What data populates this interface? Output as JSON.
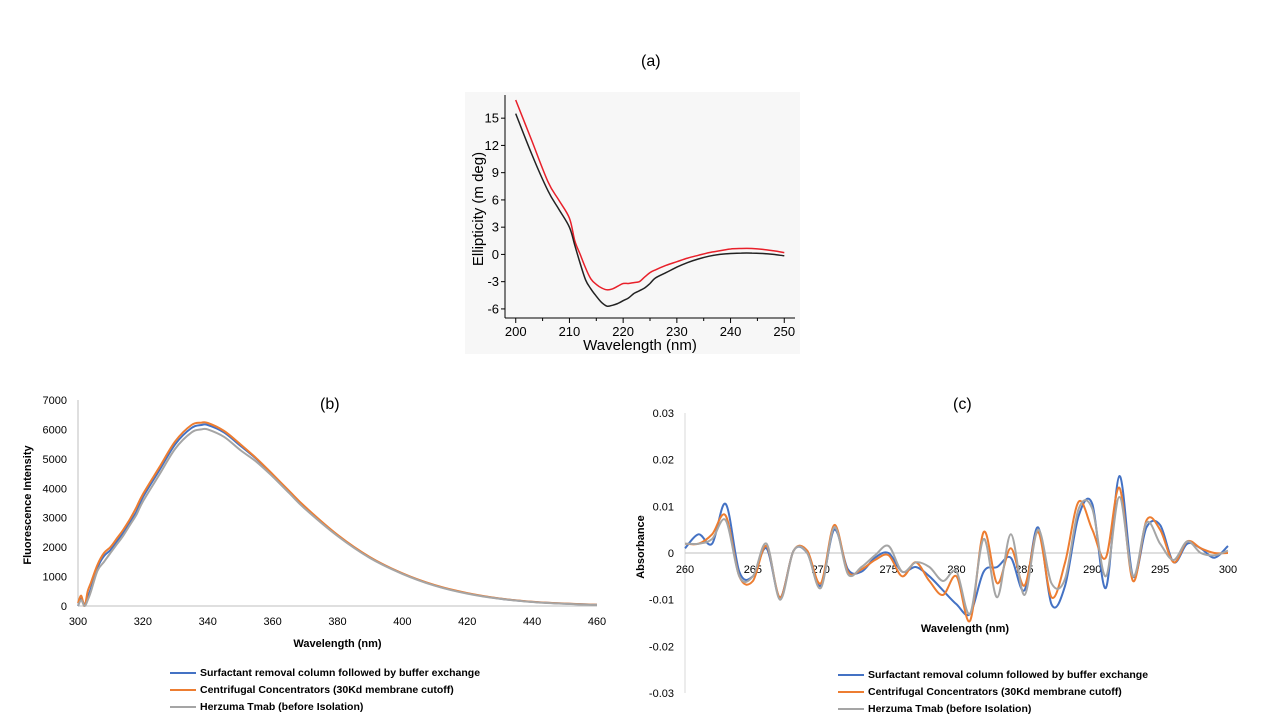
{
  "panels": {
    "a": {
      "label": "(a)"
    },
    "b": {
      "label": "(b)"
    },
    "c": {
      "label": "(c)"
    }
  },
  "colors": {
    "blue": "#4472C4",
    "orange": "#ED7D31",
    "gray": "#A5A5A5",
    "red": "#e8202a",
    "black": "#222222"
  },
  "legend": [
    {
      "name": "Surfactant removal column followed by buffer exchange",
      "color": "#4472C4"
    },
    {
      "name": "Centrifugal Concentrators (30Kd membrane cutoff)",
      "color": "#ED7D31"
    },
    {
      "name": "Herzuma Tmab (before Isolation)",
      "color": "#A5A5A5"
    }
  ],
  "chart_data": [
    {
      "type": "line",
      "title": "",
      "xlabel": "Wavelength (nm)",
      "ylabel": "Ellipticity (m deg)",
      "xlim": [
        198,
        252
      ],
      "ylim": [
        -7,
        17
      ],
      "xticks": [
        200,
        210,
        220,
        230,
        240,
        250
      ],
      "yticks": [
        -6,
        -3,
        0,
        3,
        6,
        9,
        12,
        15
      ],
      "grid": false,
      "series": [
        {
          "color": "#e8202a",
          "x": [
            200,
            203,
            206,
            208,
            210,
            211,
            212,
            213,
            214,
            215,
            216,
            217,
            218,
            219,
            220,
            221,
            222,
            223,
            224,
            225,
            226,
            228,
            230,
            232,
            234,
            236,
            238,
            240,
            242,
            244,
            246,
            248,
            250
          ],
          "y": [
            17,
            12.5,
            8,
            6,
            4,
            1.5,
            0,
            -1.5,
            -2.7,
            -3.3,
            -3.7,
            -3.9,
            -3.8,
            -3.5,
            -3.2,
            -3.2,
            -3.1,
            -3.0,
            -2.5,
            -2.0,
            -1.7,
            -1.2,
            -0.8,
            -0.4,
            -0.1,
            0.2,
            0.4,
            0.6,
            0.65,
            0.65,
            0.55,
            0.4,
            0.2
          ]
        },
        {
          "color": "#222222",
          "x": [
            200,
            203,
            206,
            208,
            210,
            211,
            212,
            213,
            214,
            215,
            216,
            217,
            218,
            219,
            220,
            221,
            222,
            223,
            224,
            225,
            226,
            228,
            230,
            232,
            234,
            236,
            238,
            240,
            242,
            244,
            246,
            248,
            250
          ],
          "y": [
            15.5,
            11,
            7,
            5,
            3,
            1,
            -1,
            -2.8,
            -3.8,
            -4.6,
            -5.3,
            -5.7,
            -5.6,
            -5.4,
            -5.1,
            -4.8,
            -4.3,
            -4.0,
            -3.7,
            -3.2,
            -2.6,
            -2.0,
            -1.4,
            -0.9,
            -0.5,
            -0.2,
            0.0,
            0.1,
            0.15,
            0.15,
            0.1,
            0.0,
            -0.15
          ]
        }
      ]
    },
    {
      "type": "line",
      "title": "",
      "xlabel": "Wavelength (nm)",
      "ylabel": "Fluorescence Intensity",
      "xlim": [
        300,
        460
      ],
      "ylim": [
        0,
        7000
      ],
      "xticks": [
        300,
        320,
        340,
        360,
        380,
        400,
        420,
        440,
        460
      ],
      "yticks": [
        0,
        1000,
        2000,
        3000,
        4000,
        5000,
        6000,
        7000
      ],
      "grid": false,
      "series": [
        {
          "name": "Surfactant removal column followed by buffer exchange",
          "color": "#4472C4",
          "x": [
            300,
            301,
            302,
            303,
            304,
            306,
            308,
            310,
            312,
            314,
            316,
            318,
            320,
            325,
            330,
            335,
            338,
            340,
            345,
            350,
            355,
            360,
            365,
            370,
            380,
            390,
            400,
            410,
            420,
            430,
            440,
            450,
            460
          ],
          "y": [
            0,
            250,
            50,
            300,
            600,
            1300,
            1700,
            1900,
            2200,
            2500,
            2850,
            3200,
            3700,
            4600,
            5500,
            6050,
            6150,
            6150,
            5900,
            5450,
            5000,
            4450,
            3900,
            3350,
            2400,
            1650,
            1100,
            700,
            430,
            250,
            140,
            80,
            40
          ]
        },
        {
          "name": "Centrifugal Concentrators (30Kd membrane cutoff)",
          "color": "#ED7D31",
          "x": [
            300,
            301,
            302,
            303,
            304,
            306,
            308,
            310,
            312,
            314,
            316,
            318,
            320,
            325,
            330,
            335,
            338,
            340,
            345,
            350,
            355,
            360,
            365,
            370,
            380,
            390,
            400,
            410,
            420,
            430,
            440,
            450,
            460
          ],
          "y": [
            100,
            350,
            0,
            500,
            800,
            1400,
            1800,
            2000,
            2300,
            2600,
            2950,
            3350,
            3800,
            4700,
            5600,
            6150,
            6230,
            6220,
            5950,
            5500,
            5020,
            4480,
            3920,
            3370,
            2420,
            1660,
            1110,
            710,
            440,
            255,
            145,
            85,
            45
          ]
        },
        {
          "name": "Herzuma Tmab (before Isolation)",
          "color": "#A5A5A5",
          "x": [
            300,
            301,
            302,
            303,
            304,
            306,
            308,
            310,
            312,
            314,
            316,
            318,
            320,
            325,
            330,
            335,
            338,
            340,
            345,
            350,
            355,
            360,
            365,
            370,
            380,
            390,
            400,
            410,
            420,
            430,
            440,
            450,
            460
          ],
          "y": [
            0,
            200,
            0,
            200,
            500,
            1200,
            1500,
            1800,
            2100,
            2400,
            2750,
            3100,
            3550,
            4450,
            5350,
            5900,
            6000,
            6000,
            5750,
            5300,
            4900,
            4400,
            3850,
            3300,
            2380,
            1630,
            1090,
            690,
            420,
            245,
            135,
            75,
            35
          ]
        }
      ]
    },
    {
      "type": "line",
      "title": "",
      "xlabel": "Wavelength (nm)",
      "ylabel": "Absorbance",
      "xlim": [
        260,
        300
      ],
      "ylim": [
        -0.03,
        0.03
      ],
      "xticks": [
        260,
        265,
        270,
        275,
        280,
        285,
        290,
        295,
        300
      ],
      "yticks": [
        -0.03,
        -0.02,
        -0.01,
        0,
        0.01,
        0.02,
        0.03
      ],
      "grid": false,
      "series": [
        {
          "name": "Surfactant removal column followed by buffer exchange",
          "color": "#4472C4",
          "x": [
            260,
            261,
            262,
            263,
            264,
            265,
            266,
            267,
            268,
            269,
            270,
            271,
            272,
            273,
            274,
            275,
            276,
            277,
            278,
            279,
            280,
            281,
            282,
            283,
            284,
            285,
            286,
            287,
            288,
            289,
            290,
            291,
            292,
            293,
            294,
            295,
            296,
            297,
            298,
            299,
            300
          ],
          "y": [
            0.001,
            0.004,
            0.002,
            0.0105,
            -0.004,
            -0.005,
            0.001,
            -0.0095,
            0.0005,
            0.0,
            -0.007,
            0.005,
            -0.0035,
            -0.004,
            -0.001,
            0.0,
            -0.004,
            -0.003,
            -0.005,
            -0.008,
            -0.011,
            -0.013,
            -0.004,
            -0.003,
            -0.001,
            -0.008,
            0.0055,
            -0.011,
            -0.007,
            0.008,
            0.0105,
            -0.0075,
            0.0165,
            -0.005,
            0.0055,
            0.006,
            -0.002,
            0.002,
            0.001,
            -0.001,
            0.0015
          ]
        },
        {
          "name": "Centrifugal Concentrators (30Kd membrane cutoff)",
          "color": "#ED7D31",
          "x": [
            260,
            261,
            262,
            263,
            264,
            265,
            266,
            267,
            268,
            269,
            270,
            271,
            272,
            273,
            274,
            275,
            276,
            277,
            278,
            279,
            280,
            281,
            282,
            283,
            284,
            285,
            286,
            287,
            288,
            289,
            290,
            291,
            292,
            293,
            294,
            295,
            296,
            297,
            298,
            299,
            300
          ],
          "y": [
            0.002,
            0.002,
            0.004,
            0.008,
            -0.005,
            -0.006,
            0.0015,
            -0.0095,
            0.0005,
            0.0005,
            -0.0065,
            0.006,
            -0.004,
            -0.0035,
            -0.0015,
            -0.0005,
            -0.005,
            -0.002,
            -0.006,
            -0.009,
            -0.005,
            -0.0145,
            0.0045,
            -0.0065,
            0.001,
            -0.007,
            0.0045,
            -0.0095,
            -0.002,
            0.011,
            0.005,
            -0.001,
            0.014,
            -0.006,
            0.007,
            0.005,
            -0.002,
            0.0025,
            0.001,
            0.0,
            0.0
          ]
        },
        {
          "name": "Herzuma Tmab (before Isolation)",
          "color": "#A5A5A5",
          "x": [
            260,
            261,
            262,
            263,
            264,
            265,
            266,
            267,
            268,
            269,
            270,
            271,
            272,
            273,
            274,
            275,
            276,
            277,
            278,
            279,
            280,
            281,
            282,
            283,
            284,
            285,
            286,
            287,
            288,
            289,
            290,
            291,
            292,
            293,
            294,
            295,
            296,
            297,
            298,
            299,
            300
          ],
          "y": [
            0.002,
            0.002,
            0.003,
            0.007,
            -0.005,
            -0.005,
            0.002,
            -0.01,
            0.0005,
            0.0,
            -0.0075,
            0.0055,
            -0.0045,
            -0.003,
            -0.0005,
            0.0015,
            -0.004,
            -0.002,
            -0.003,
            -0.006,
            -0.004,
            -0.013,
            0.003,
            -0.0095,
            0.004,
            -0.009,
            0.005,
            -0.0065,
            -0.0055,
            0.0095,
            0.0095,
            -0.005,
            0.012,
            -0.005,
            0.0065,
            0.002,
            -0.0015,
            0.0025,
            0.0,
            -0.0005,
            0.0005
          ]
        }
      ]
    }
  ]
}
